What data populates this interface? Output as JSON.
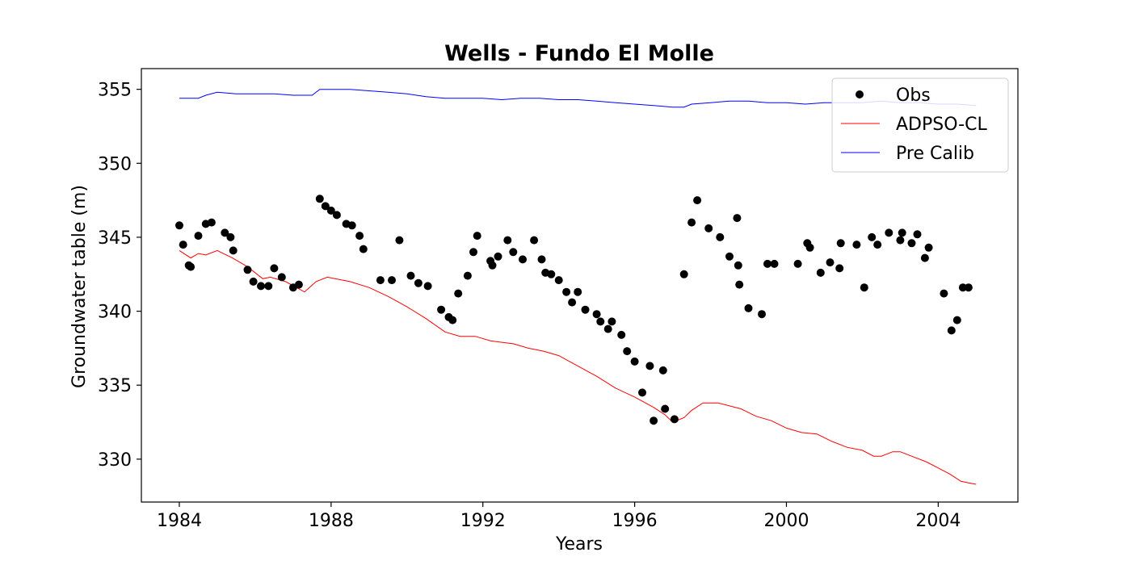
{
  "chart_data": {
    "type": "line",
    "title": "Wells - Fundo El Molle",
    "xlabel": "Years",
    "ylabel": "Groundwater table (m)",
    "xlim": [
      1983.0,
      2006.1
    ],
    "ylim": [
      327.1,
      356.4
    ],
    "xticks": [
      1984,
      1988,
      1992,
      1996,
      2000,
      2004
    ],
    "yticks": [
      330,
      335,
      340,
      345,
      350,
      355
    ],
    "grid": false,
    "legend_position": "top-right",
    "colors": {
      "obs": "#000000",
      "adpso": "#ff0000",
      "pre": "#0000ff"
    },
    "series": [
      {
        "name": "Obs",
        "kind": "scatter",
        "x": [
          1984.0,
          1984.1,
          1984.25,
          1984.3,
          1984.5,
          1984.7,
          1984.85,
          1985.2,
          1985.35,
          1985.42,
          1985.8,
          1985.95,
          1986.15,
          1986.35,
          1986.5,
          1986.7,
          1987.0,
          1987.15,
          1987.7,
          1987.85,
          1988.0,
          1988.15,
          1988.4,
          1988.55,
          1988.75,
          1988.85,
          1989.3,
          1989.6,
          1989.8,
          1990.1,
          1990.3,
          1990.55,
          1990.9,
          1991.1,
          1991.2,
          1991.35,
          1991.6,
          1991.75,
          1991.85,
          1992.2,
          1992.25,
          1992.4,
          1992.65,
          1992.8,
          1993.05,
          1993.35,
          1993.55,
          1993.65,
          1993.8,
          1994.0,
          1994.2,
          1994.35,
          1994.5,
          1994.7,
          1995.0,
          1995.1,
          1995.3,
          1995.4,
          1995.65,
          1995.8,
          1996.0,
          1996.2,
          1996.4,
          1996.5,
          1996.75,
          1996.8,
          1997.05,
          1997.3,
          1997.5,
          1997.65,
          1997.95,
          1998.25,
          1998.5,
          1998.7,
          1998.73,
          1998.76,
          1999.0,
          1999.35,
          1999.5,
          1999.68,
          2000.3,
          2000.55,
          2000.62,
          2000.9,
          2001.15,
          2001.4,
          2001.43,
          2001.85,
          2002.05,
          2002.25,
          2002.4,
          2002.7,
          2003.0,
          2003.05,
          2003.3,
          2003.45,
          2003.65,
          2003.75,
          2004.15,
          2004.35,
          2004.5,
          2004.65,
          2004.8
        ],
        "y": [
          345.8,
          344.5,
          343.1,
          343.0,
          345.1,
          345.9,
          346.0,
          345.3,
          345.0,
          344.1,
          342.8,
          342.0,
          341.7,
          341.7,
          342.9,
          342.3,
          341.6,
          341.8,
          347.6,
          347.1,
          346.8,
          346.5,
          345.9,
          345.8,
          345.1,
          344.2,
          342.1,
          342.1,
          344.8,
          342.4,
          341.9,
          341.7,
          340.1,
          339.6,
          339.4,
          341.2,
          342.4,
          344.0,
          345.1,
          343.4,
          343.1,
          343.7,
          344.8,
          344.0,
          343.5,
          344.8,
          343.5,
          342.6,
          342.5,
          342.1,
          341.3,
          340.6,
          341.3,
          340.1,
          339.8,
          339.3,
          338.8,
          339.3,
          338.4,
          337.3,
          336.6,
          334.5,
          336.3,
          332.6,
          336.0,
          333.4,
          332.7,
          342.5,
          346.0,
          347.5,
          345.6,
          345.0,
          343.7,
          346.3,
          343.1,
          341.8,
          340.2,
          339.8,
          343.2,
          343.2,
          343.2,
          344.6,
          344.3,
          342.6,
          343.3,
          342.9,
          344.6,
          344.5,
          341.6,
          345.0,
          344.5,
          345.3,
          344.8,
          345.3,
          344.6,
          345.2,
          343.6,
          344.3,
          341.2,
          338.7,
          339.4,
          341.6,
          341.6
        ]
      },
      {
        "name": "ADPSO-CL",
        "kind": "line",
        "x": [
          1984.0,
          1984.3,
          1984.5,
          1984.7,
          1985.0,
          1985.4,
          1985.8,
          1986.2,
          1986.4,
          1986.8,
          1987.3,
          1987.6,
          1987.9,
          1988.5,
          1989.0,
          1989.5,
          1990.0,
          1990.5,
          1991.0,
          1991.4,
          1991.8,
          1992.2,
          1992.5,
          1992.8,
          1993.2,
          1993.6,
          1994.0,
          1994.5,
          1995.0,
          1995.5,
          1996.0,
          1996.5,
          1996.8,
          1997.0,
          1997.3,
          1997.5,
          1997.8,
          1998.2,
          1998.8,
          1999.2,
          1999.6,
          2000.0,
          2000.4,
          2000.8,
          2001.2,
          2001.6,
          2002.0,
          2002.3,
          2002.5,
          2002.8,
          2003.0,
          2003.3,
          2003.7,
          2004.0,
          2004.3,
          2004.6,
          2004.8,
          2005.0
        ],
        "y": [
          344.1,
          343.6,
          343.9,
          343.8,
          344.1,
          343.6,
          343.0,
          342.2,
          342.3,
          342.0,
          341.3,
          342.0,
          342.3,
          342.0,
          341.6,
          341.0,
          340.3,
          339.5,
          338.6,
          338.3,
          338.3,
          338.0,
          337.9,
          337.8,
          337.5,
          337.3,
          337.0,
          336.3,
          335.6,
          334.8,
          334.2,
          333.5,
          333.0,
          332.5,
          332.8,
          333.3,
          333.8,
          333.8,
          333.4,
          332.9,
          332.6,
          332.1,
          331.8,
          331.7,
          331.2,
          330.8,
          330.6,
          330.2,
          330.2,
          330.5,
          330.5,
          330.2,
          329.8,
          329.4,
          329.0,
          328.5,
          328.4,
          328.3
        ]
      },
      {
        "name": "Pre Calib",
        "kind": "line",
        "x": [
          1984.0,
          1984.5,
          1984.7,
          1985.0,
          1985.5,
          1986.0,
          1986.5,
          1987.0,
          1987.5,
          1987.7,
          1988.0,
          1988.5,
          1989.0,
          1989.5,
          1990.0,
          1990.5,
          1991.0,
          1991.5,
          1992.0,
          1992.5,
          1993.0,
          1993.5,
          1994.0,
          1994.5,
          1995.0,
          1995.5,
          1996.0,
          1996.5,
          1997.0,
          1997.3,
          1997.5,
          1998.0,
          1998.5,
          1999.0,
          1999.5,
          2000.0,
          2000.5,
          2001.0,
          2001.5,
          2002.0,
          2002.5,
          2003.0,
          2003.5,
          2004.0,
          2004.5,
          2005.0
        ],
        "y": [
          354.4,
          354.4,
          354.6,
          354.8,
          354.7,
          354.7,
          354.7,
          354.6,
          354.6,
          355.0,
          355.0,
          355.0,
          354.9,
          354.8,
          354.7,
          354.5,
          354.4,
          354.4,
          354.4,
          354.3,
          354.4,
          354.4,
          354.3,
          354.3,
          354.2,
          354.1,
          354.0,
          353.9,
          353.8,
          353.8,
          354.0,
          354.1,
          354.2,
          354.2,
          354.1,
          354.1,
          354.0,
          354.1,
          354.1,
          354.1,
          354.2,
          354.1,
          354.1,
          354.0,
          354.0,
          353.9
        ]
      }
    ]
  }
}
